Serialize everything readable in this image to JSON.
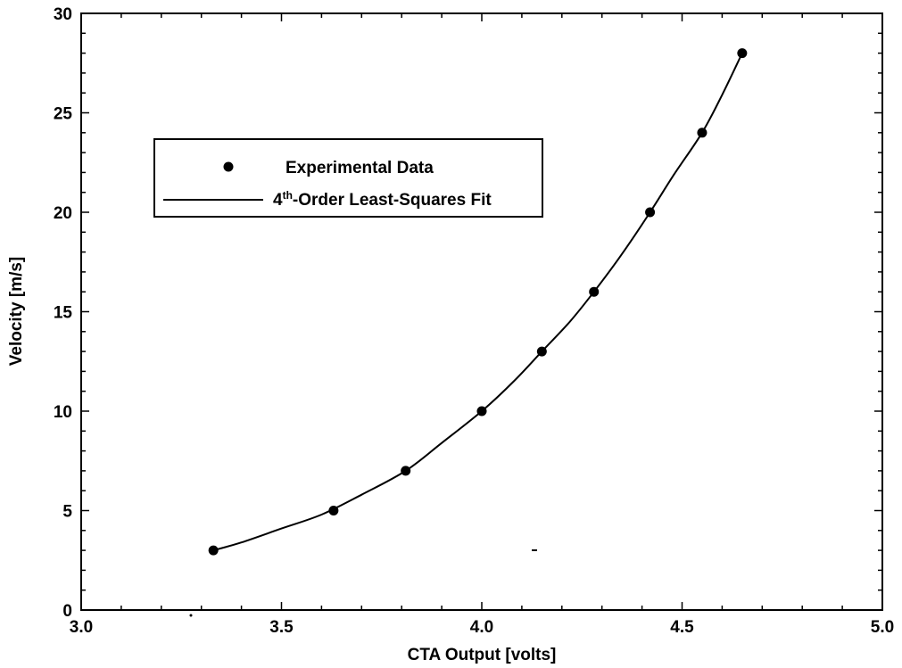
{
  "chart_data": {
    "type": "scatter",
    "title": "",
    "xlabel": "CTA Output [volts]",
    "ylabel": "Velocity [m/s]",
    "xlim": [
      3.0,
      5.0
    ],
    "ylim": [
      0,
      30
    ],
    "xticks": [
      "3.0",
      "3.5",
      "4.0",
      "4.5",
      "5.0"
    ],
    "yticks": [
      "0",
      "5",
      "10",
      "15",
      "20",
      "25",
      "30"
    ],
    "grid": false,
    "legend_position": "upper-left",
    "series": [
      {
        "name": "Experimental Data",
        "kind": "markers",
        "x": [
          3.33,
          3.63,
          3.81,
          4.0,
          4.15,
          4.28,
          4.42,
          4.55,
          4.65
        ],
        "y": [
          3.0,
          5.0,
          7.0,
          10.0,
          13.0,
          16.0,
          20.0,
          24.0,
          28.0
        ]
      },
      {
        "name_prefix": "4",
        "name_superscript": "th",
        "name_suffix": "-Order Least-Squares Fit",
        "kind": "line",
        "x": [
          3.33,
          3.4,
          3.5,
          3.6,
          3.7,
          3.81,
          3.9,
          4.0,
          4.08,
          4.15,
          4.22,
          4.28,
          4.35,
          4.42,
          4.48,
          4.55,
          4.6,
          4.65
        ],
        "y": [
          3.0,
          3.4,
          4.1,
          4.8,
          5.8,
          7.0,
          8.4,
          10.0,
          11.5,
          13.0,
          14.5,
          16.0,
          17.9,
          20.0,
          21.9,
          24.0,
          25.9,
          28.0
        ]
      }
    ]
  }
}
